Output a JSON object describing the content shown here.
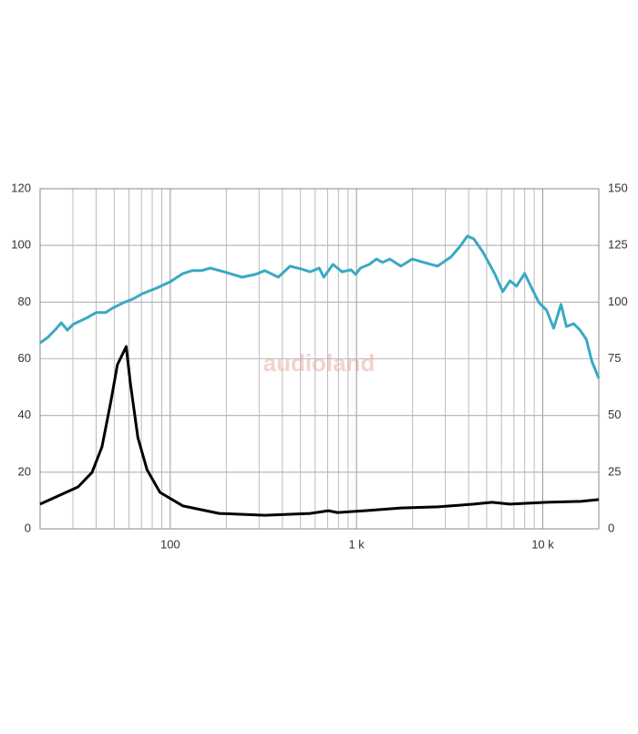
{
  "chart_data": {
    "type": "line",
    "watermark": "audioland",
    "xscale": "log",
    "xlim": [
      20,
      20000
    ],
    "xticks": [
      {
        "value": 100,
        "label": "100"
      },
      {
        "value": 1000,
        "label": "1 k"
      },
      {
        "value": 10000,
        "label": "10 k"
      }
    ],
    "xgrid": [
      30,
      40,
      50,
      60,
      70,
      80,
      90,
      200,
      300,
      400,
      500,
      600,
      700,
      800,
      900,
      2000,
      3000,
      4000,
      5000,
      6000,
      7000,
      8000,
      9000
    ],
    "ylim": [
      0,
      120
    ],
    "yticks": [
      0,
      20,
      40,
      60,
      80,
      100,
      120
    ],
    "y2lim": [
      0,
      150
    ],
    "y2ticks": [
      0,
      25,
      50,
      75,
      100,
      125,
      150
    ],
    "grid": true,
    "series": [
      {
        "color": "#3aa9c4",
        "x": [
          20,
          22,
          24,
          26,
          28,
          30,
          36,
          40,
          45,
          49,
          56,
          63,
          71,
          84,
          100,
          117,
          131,
          147,
          164,
          194,
          243,
          287,
          322,
          380,
          440,
          504,
          564,
          631,
          667,
          747,
          836,
          935,
          989,
          1050,
          1170,
          1280,
          1380,
          1510,
          1730,
          1990,
          2300,
          2720,
          3210,
          3600,
          3940,
          4260,
          4760,
          5510,
          6100,
          6670,
          7220,
          7990,
          8830,
          9550,
          10470,
          11450,
          12530,
          13400,
          14650,
          15850,
          17140,
          18340,
          20000
        ],
        "values": [
          65.6,
          67.6,
          70.1,
          72.7,
          70.1,
          72.1,
          74.6,
          76.3,
          76.3,
          77.9,
          79.8,
          81.1,
          83,
          84.9,
          87.2,
          90.1,
          91.1,
          91.1,
          92,
          90.7,
          88.8,
          89.8,
          91.1,
          88.8,
          92.7,
          91.7,
          90.7,
          92,
          88.8,
          93.3,
          90.7,
          91.4,
          89.8,
          92,
          93.3,
          95.2,
          94,
          95.2,
          92.7,
          95.2,
          94,
          92.7,
          95.9,
          99.7,
          103.3,
          102.3,
          97.8,
          90.1,
          83.7,
          87.5,
          85.6,
          90.1,
          84.3,
          79.8,
          77.2,
          70.8,
          79.2,
          71.4,
          72.4,
          70.1,
          66.9,
          59.2,
          53.1
        ]
      },
      {
        "color": "#000000",
        "axis": "y2",
        "x": [
          20,
          32,
          38,
          43,
          48,
          52,
          58,
          61,
          67,
          75,
          88,
          117,
          183,
          322,
          564,
          706,
          790,
          1110,
          1730,
          2720,
          4260,
          5330,
          6670,
          10470,
          16000,
          20000
        ],
        "values": [
          10.9,
          18.5,
          24.9,
          36.2,
          56.3,
          72.4,
          80.4,
          64.3,
          40.2,
          26.1,
          16.1,
          10.1,
          6.8,
          6.0,
          6.8,
          8.0,
          7.2,
          8.0,
          9.2,
          9.7,
          10.9,
          11.7,
          10.9,
          11.7,
          12.1,
          12.9
        ]
      }
    ]
  }
}
